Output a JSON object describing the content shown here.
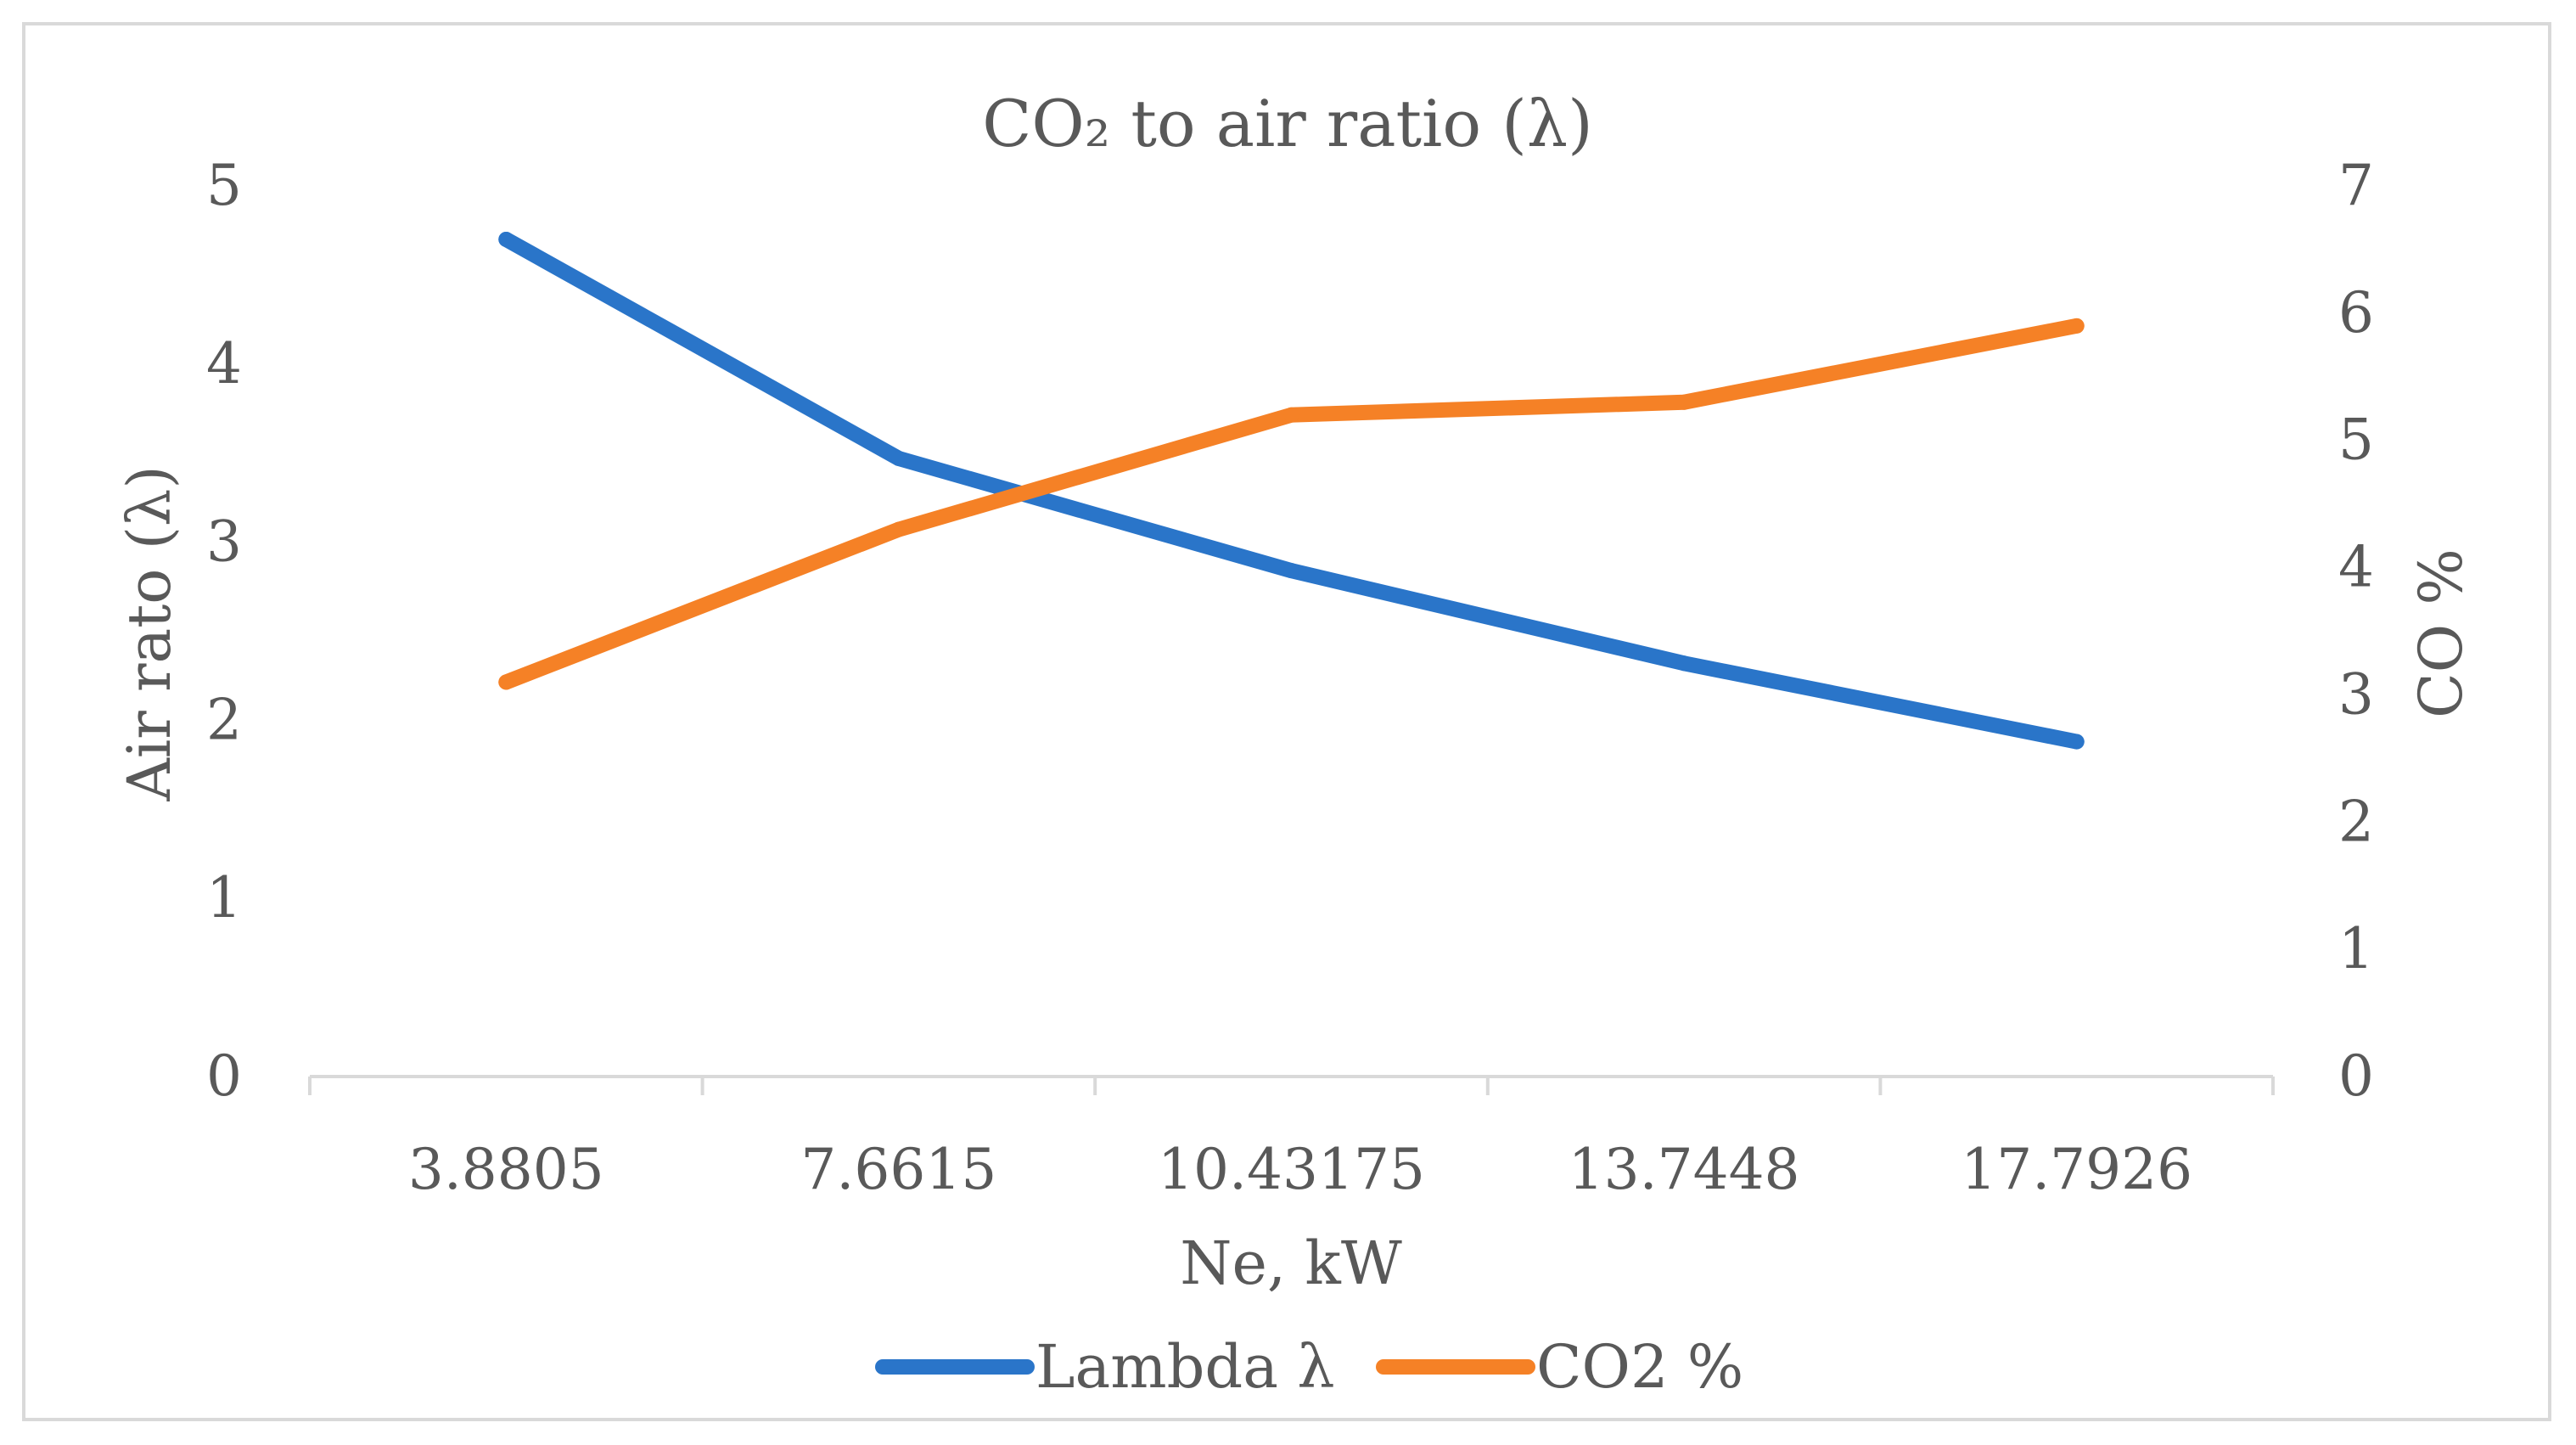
{
  "chart_data": {
    "type": "line",
    "title": "CO₂ to air ratio (λ)",
    "xlabel": "Ne, kW",
    "ylabel": "Air rato (λ)",
    "y2label": "CO %",
    "categories": [
      "3.8805",
      "7.6615",
      "10.43175",
      "13.7448",
      "17.7926"
    ],
    "ylim": [
      0,
      5
    ],
    "y2lim": [
      0,
      7
    ],
    "yticks": [
      "0",
      "1",
      "2",
      "3",
      "4",
      "5"
    ],
    "y2ticks": [
      "0",
      "1",
      "2",
      "3",
      "4",
      "5",
      "6",
      "7"
    ],
    "series": [
      {
        "name": "Lambda λ",
        "axis": "left",
        "color": "#2a75c9",
        "values": [
          4.7,
          3.47,
          2.84,
          2.32,
          1.88
        ]
      },
      {
        "name": "CO2 %",
        "axis": "right",
        "color": "#f58126",
        "values": [
          3.1,
          4.3,
          5.2,
          5.3,
          5.9
        ]
      }
    ],
    "grid": false,
    "legend": "bottom"
  }
}
